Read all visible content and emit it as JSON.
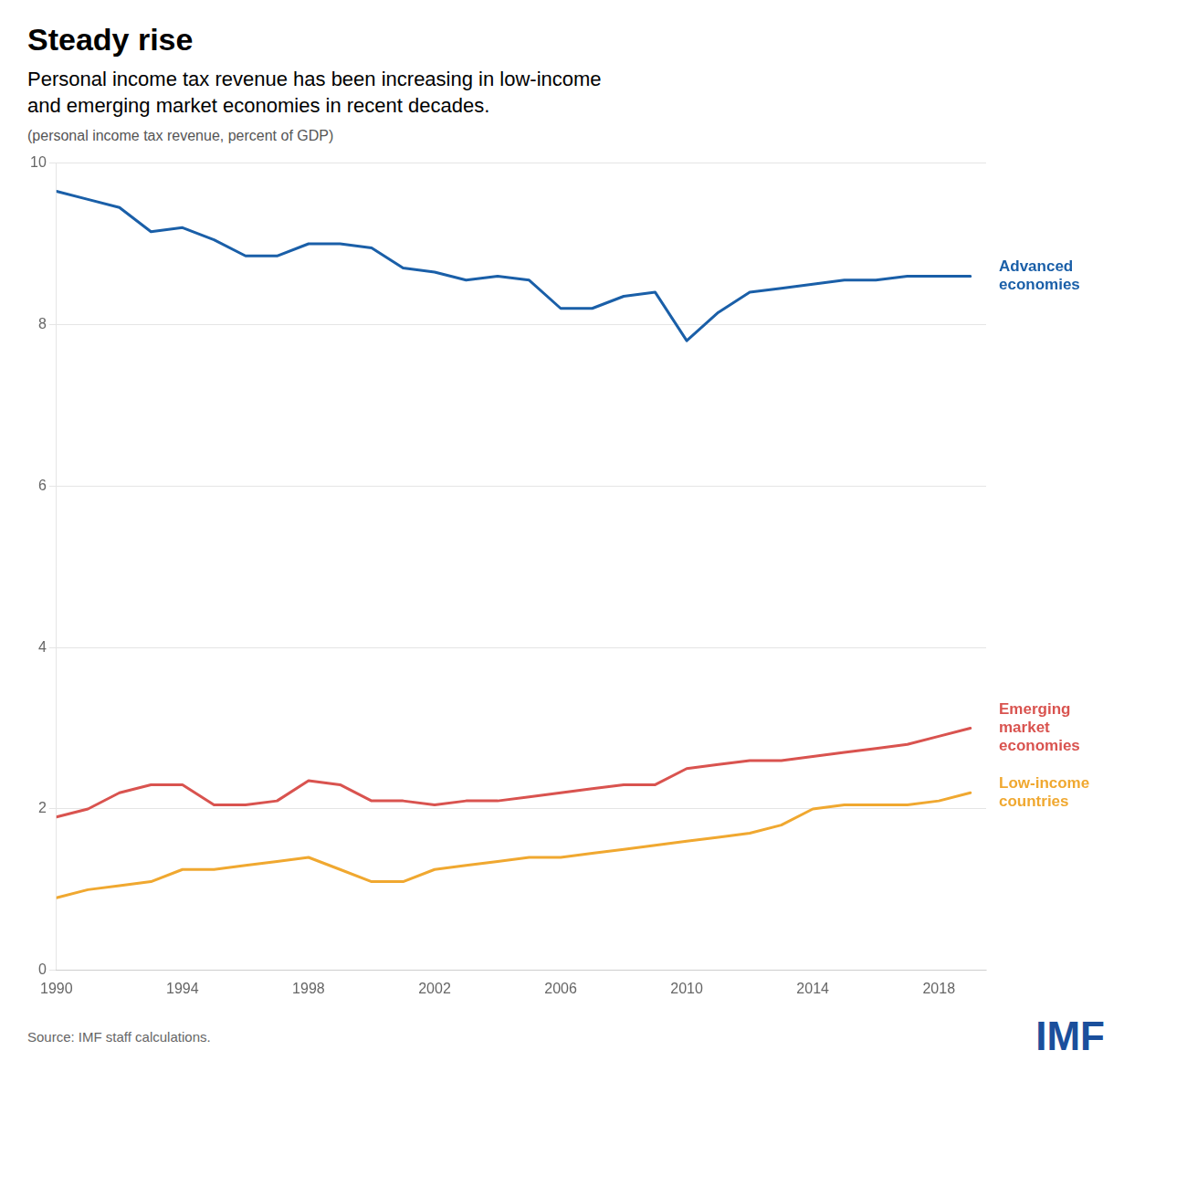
{
  "chart_data": {
    "type": "line",
    "title": "Steady rise",
    "subtitle": "Personal income tax revenue has been increasing in low-income\nand emerging market economies in recent decades.",
    "caption": "(personal income tax revenue, percent of GDP)",
    "source": "Source: IMF staff calculations.",
    "annotations": [
      {
        "text": "IMF",
        "color": "#1a4f9c"
      }
    ],
    "x": [
      1990,
      1991,
      1992,
      1993,
      1994,
      1995,
      1996,
      1997,
      1998,
      1999,
      2000,
      2001,
      2002,
      2003,
      2004,
      2005,
      2006,
      2007,
      2008,
      2009,
      2010,
      2011,
      2012,
      2013,
      2014,
      2015,
      2016,
      2017,
      2018,
      2019
    ],
    "series": [
      {
        "name": "Advanced\neconomies",
        "color": "#1a5fa8",
        "values": [
          9.65,
          9.55,
          9.45,
          9.15,
          9.2,
          9.05,
          8.85,
          8.85,
          9.0,
          9.0,
          8.95,
          8.7,
          8.65,
          8.55,
          8.6,
          8.55,
          8.2,
          8.2,
          8.35,
          8.4,
          7.8,
          8.15,
          8.4,
          8.45,
          8.5,
          8.55,
          8.55,
          8.6,
          8.6,
          8.6
        ]
      },
      {
        "name": "Emerging\nmarket\neconomies",
        "color": "#d9534f",
        "values": [
          1.9,
          2.0,
          2.2,
          2.3,
          2.3,
          2.05,
          2.05,
          2.1,
          2.35,
          2.3,
          2.1,
          2.1,
          2.05,
          2.1,
          2.1,
          2.15,
          2.2,
          2.25,
          2.3,
          2.3,
          2.5,
          2.55,
          2.6,
          2.6,
          2.65,
          2.7,
          2.75,
          2.8,
          2.9,
          3.0
        ]
      },
      {
        "name": "Low-income\ncountries",
        "color": "#f0a830",
        "values": [
          0.9,
          1.0,
          1.05,
          1.1,
          1.25,
          1.25,
          1.3,
          1.35,
          1.4,
          1.25,
          1.1,
          1.1,
          1.25,
          1.3,
          1.35,
          1.4,
          1.4,
          1.45,
          1.5,
          1.55,
          1.6,
          1.65,
          1.7,
          1.8,
          2.0,
          2.05,
          2.05,
          2.05,
          2.1,
          2.2
        ]
      }
    ],
    "xlim": [
      1990,
      2019.5
    ],
    "ylim": [
      0,
      10
    ],
    "xticks": [
      1990,
      1994,
      1998,
      2002,
      2006,
      2010,
      2014,
      2018
    ],
    "yticks": [
      0,
      2,
      4,
      6,
      8,
      10
    ],
    "grid": "y"
  }
}
